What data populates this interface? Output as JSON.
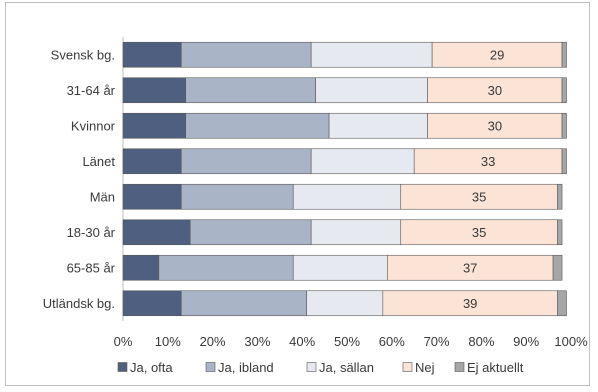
{
  "chart_data": {
    "type": "bar",
    "orientation": "horizontal",
    "stacked": true,
    "percent": true,
    "categories": [
      "Svensk bg.",
      "31-64 år",
      "Kvinnor",
      "Länet",
      "Män",
      "18-30 år",
      "65-85 år",
      "Utländsk bg."
    ],
    "series": [
      {
        "name": "Ja, ofta",
        "color": "#4f5f7f",
        "values": [
          13,
          14,
          14,
          13,
          13,
          15,
          8,
          13
        ]
      },
      {
        "name": "Ja, ibland",
        "color": "#a9b4c6",
        "values": [
          29,
          29,
          32,
          29,
          25,
          27,
          30,
          28
        ]
      },
      {
        "name": "Ja, sällan",
        "color": "#e6e9ef",
        "values": [
          27,
          25,
          22,
          23,
          24,
          20,
          21,
          17
        ]
      },
      {
        "name": "Nej",
        "color": "#fbe3d6",
        "values": [
          29,
          30,
          30,
          33,
          35,
          35,
          37,
          39
        ]
      },
      {
        "name": "Ej aktuellt",
        "color": "#a6a6a6",
        "values": [
          1,
          1,
          1,
          1,
          1,
          1,
          2,
          2
        ]
      }
    ],
    "data_labels_series": "Nej",
    "xlim": [
      0,
      100
    ],
    "x_ticks": [
      "0%",
      "10%",
      "20%",
      "30%",
      "40%",
      "50%",
      "60%",
      "70%",
      "80%",
      "90%",
      "100%"
    ],
    "title": "",
    "xlabel": "",
    "ylabel": "",
    "grid": false,
    "legend": "bottom"
  }
}
